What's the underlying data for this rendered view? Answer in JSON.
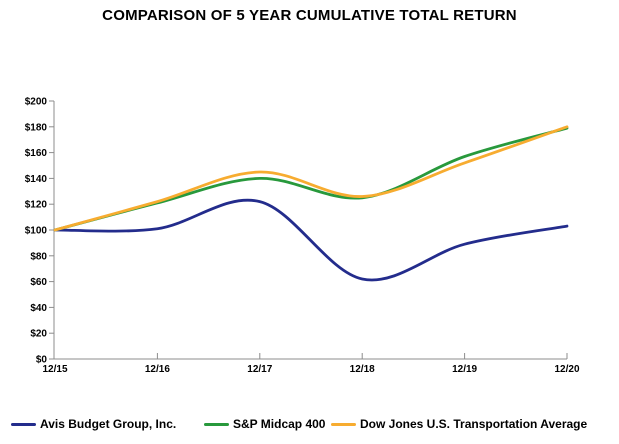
{
  "title": "COMPARISON OF 5 YEAR CUMULATIVE TOTAL RETURN",
  "chart_data": {
    "type": "line",
    "title": "COMPARISON OF 5 YEAR CUMULATIVE TOTAL RETURN",
    "categories": [
      "12/15",
      "12/16",
      "12/17",
      "12/18",
      "12/19",
      "12/20"
    ],
    "series": [
      {
        "name": "Avis Budget Group, Inc.",
        "color": "#232C8C",
        "values": [
          100,
          101,
          122,
          62,
          89,
          103
        ]
      },
      {
        "name": "S&P Midcap 400",
        "color": "#28993C",
        "values": [
          100,
          121,
          140,
          125,
          157,
          179
        ]
      },
      {
        "name": "Dow Jones U.S. Transportation Average",
        "color": "#F7AC30",
        "values": [
          100,
          122,
          145,
          126,
          152,
          180
        ]
      }
    ],
    "xlabel": "",
    "ylabel": "",
    "ylim": [
      0,
      200
    ],
    "y_tick_step": 20,
    "y_tick_labels": [
      "$0",
      "$20",
      "$40",
      "$60",
      "$80",
      "$100",
      "$120",
      "$140",
      "$160",
      "$180",
      "$200"
    ],
    "grid": false,
    "smooth": true,
    "legend_position": "bottom",
    "axis_color": "#8C8C8C"
  }
}
